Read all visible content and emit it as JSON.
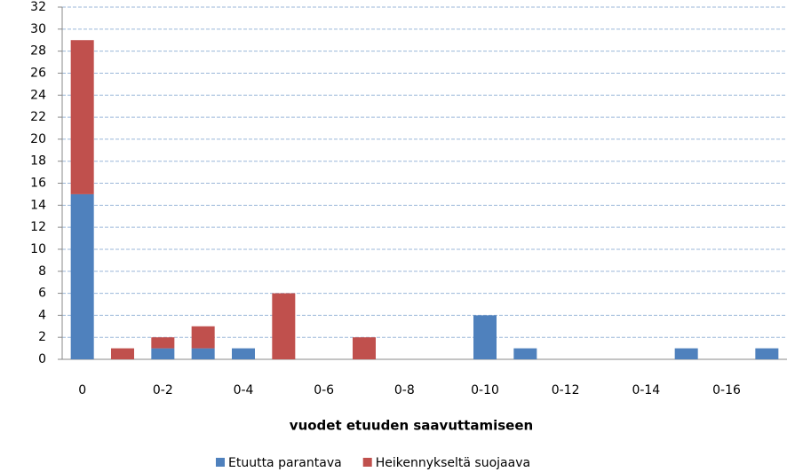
{
  "chart_data": {
    "type": "bar",
    "stacked": true,
    "categories": [
      "0",
      null,
      "0-2",
      null,
      "0-4",
      null,
      "0-6",
      null,
      "0-8",
      null,
      "0-10",
      null,
      "0-12",
      null,
      "0-14",
      null,
      "0-16",
      null
    ],
    "series": [
      {
        "name": "Etuutta parantava",
        "color": "#4f81bd",
        "values": [
          15,
          0,
          1,
          1,
          1,
          0,
          0,
          0,
          0,
          0,
          4,
          1,
          0,
          0,
          0,
          1,
          0,
          1
        ]
      },
      {
        "name": "Heikennykseltä suojaava",
        "color": "#c0504d",
        "values": [
          14,
          1,
          1,
          2,
          0,
          6,
          0,
          2,
          0,
          0,
          0,
          0,
          0,
          0,
          0,
          0,
          0,
          0
        ]
      }
    ],
    "x_label": "vuodet etuuden saavuttamiseen",
    "ylim": [
      0,
      32
    ],
    "yticks": [
      0,
      2,
      4,
      6,
      8,
      10,
      12,
      14,
      16,
      18,
      20,
      22,
      24,
      26,
      28,
      30,
      32
    ],
    "grid": true,
    "legend": "bottom"
  }
}
